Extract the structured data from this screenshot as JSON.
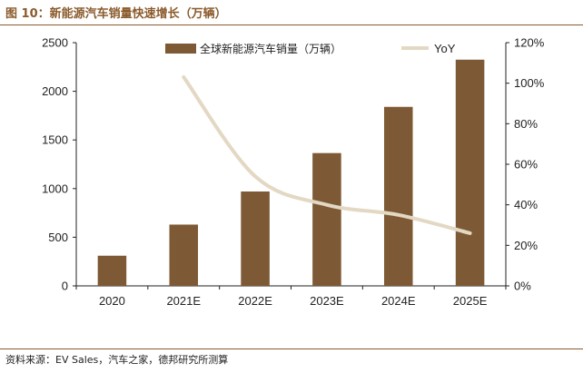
{
  "figure_title": "图 10：新能源汽车销量快速增长（万辆）",
  "source": "资料来源：EV Sales，汽车之家，德邦研究所测算",
  "colors": {
    "bar": "#7d5a35",
    "line": "#e3d8c3",
    "title": "#8a5a2b",
    "axis": "#222222"
  },
  "chart_data": {
    "type": "bar",
    "categories": [
      "2020",
      "2021E",
      "2022E",
      "2023E",
      "2024E",
      "2025E"
    ],
    "series": [
      {
        "name": "全球新能源汽车销量（万辆）",
        "type": "bar",
        "axis": "left",
        "values": [
          310,
          630,
          970,
          1365,
          1840,
          2325
        ]
      },
      {
        "name": "YoY",
        "type": "line",
        "axis": "right",
        "values": [
          null,
          1.03,
          0.54,
          0.4,
          0.35,
          0.26
        ]
      }
    ],
    "y_left": {
      "ylim": [
        0,
        2500
      ],
      "ticks": [
        "0",
        "500",
        "1000",
        "1500",
        "2000",
        "2500"
      ]
    },
    "y_right": {
      "ylim": [
        0,
        1.2
      ],
      "ticks": [
        "0%",
        "20%",
        "40%",
        "60%",
        "80%",
        "100%",
        "120%"
      ]
    },
    "legend_position": "top",
    "grid": false
  }
}
